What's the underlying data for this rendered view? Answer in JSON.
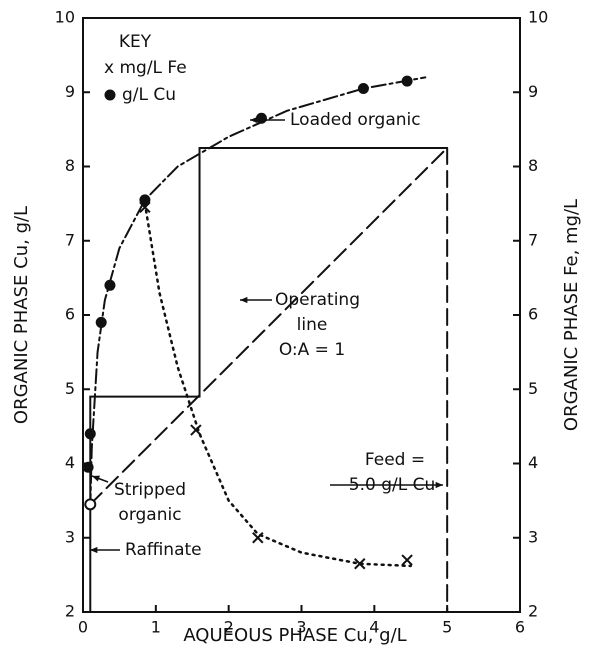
{
  "chart_data": {
    "type": "line",
    "xlabel": "AQUEOUS PHASE Cu, g/L",
    "ylabel": "ORGANIC PHASE Cu, g/L",
    "y2label": "ORGANIC PHASE Fe, mg/L",
    "legend_title": "KEY",
    "xlim": [
      0,
      6
    ],
    "xticks": [
      0,
      1,
      2,
      3,
      4,
      5,
      6
    ],
    "ylim": [
      2,
      10
    ],
    "yticks": [
      2,
      3,
      4,
      5,
      6,
      7,
      8,
      9,
      10
    ],
    "y2lim": [
      2,
      10
    ],
    "y2ticks": [
      2,
      3,
      4,
      5,
      6,
      7,
      8,
      9,
      10
    ],
    "series": [
      {
        "name": "x mg/L Fe",
        "marker": "x",
        "axis": "y2",
        "x": [
          0.85,
          1.55,
          2.4,
          3.8,
          4.45
        ],
        "values": [
          7.45,
          4.45,
          3.0,
          2.65,
          2.7
        ]
      },
      {
        "name": "g/L Cu",
        "marker": "dot",
        "x": [
          0.07,
          0.1,
          0.25,
          0.37,
          0.85,
          2.45,
          3.85,
          4.45
        ],
        "values": [
          3.95,
          4.4,
          5.9,
          6.4,
          7.55,
          8.65,
          9.05,
          9.15
        ]
      }
    ],
    "curves": [
      {
        "style": "dashdot",
        "x": [
          0.1,
          0.12,
          0.2,
          0.3,
          0.5,
          0.85,
          1.3,
          2,
          2.8,
          3.85,
          4.7
        ],
        "y": [
          3.4,
          4.2,
          5.5,
          6.2,
          6.9,
          7.55,
          8.0,
          8.4,
          8.75,
          9.05,
          9.2
        ]
      },
      {
        "style": "dotted",
        "x": [
          0.85,
          1.05,
          1.3,
          1.6,
          2,
          2.4,
          3,
          3.8,
          4.5
        ],
        "y": [
          7.5,
          6.3,
          5.3,
          4.4,
          3.5,
          3.05,
          2.8,
          2.65,
          2.62
        ]
      },
      {
        "style": "dashed",
        "x": [
          0.1,
          5
        ],
        "y": [
          3.45,
          8.25
        ]
      },
      {
        "style": "solid",
        "x": [
          0.1,
          0.1,
          1.6,
          1.6,
          5
        ],
        "y": [
          3.45,
          4.9,
          4.9,
          8.25,
          8.25
        ]
      },
      {
        "style": "dashed",
        "x": [
          5,
          5
        ],
        "y": [
          8.25,
          2
        ]
      },
      {
        "style": "solid",
        "x": [
          0.1,
          0.1
        ],
        "y": [
          3.45,
          2
        ]
      }
    ],
    "stripped_point": {
      "x": 0.1,
      "y": 3.45
    },
    "annotations": [
      "Loaded organic",
      "Operating",
      "line",
      "O:A = 1",
      "Feed =",
      "5.0 g/L Cu",
      "Stripped",
      "organic",
      "Raffinate"
    ]
  }
}
